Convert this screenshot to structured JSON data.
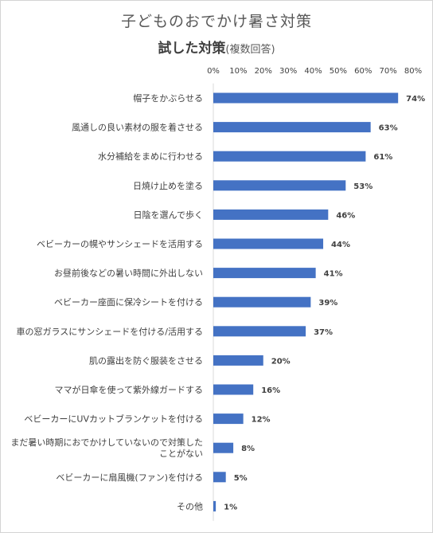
{
  "chart_data": {
    "type": "bar",
    "orientation": "horizontal",
    "title": "子どものおでかけ暑さ対策",
    "subtitle_main": "試した対策",
    "subtitle_note": "(複数回答)",
    "xlim": [
      0,
      80
    ],
    "ticks": [
      "0%",
      "10%",
      "20%",
      "30%",
      "40%",
      "50%",
      "60%",
      "70%",
      "80%"
    ],
    "tick_values": [
      0,
      10,
      20,
      30,
      40,
      50,
      60,
      70,
      80
    ],
    "grid": false,
    "bar_color": "#4472c4",
    "categories": [
      [
        "帽子をかぶらせる"
      ],
      [
        "風通しの良い素材の服を着させる"
      ],
      [
        "水分補給をまめに行わせる"
      ],
      [
        "日焼け止めを塗る"
      ],
      [
        "日陰を選んで歩く"
      ],
      [
        "ベビーカーの幌やサンシェードを活用する"
      ],
      [
        "お昼前後などの暑い時間に外出しない"
      ],
      [
        "ベビーカー座面に保冷シートを付ける"
      ],
      [
        "車の窓ガラスにサンシェードを付ける/活用する"
      ],
      [
        "肌の露出を防ぐ服装をさせる"
      ],
      [
        "ママが日傘を使って紫外線ガードする"
      ],
      [
        "ベビーカーにUVカットブランケットを付ける"
      ],
      [
        "まだ暑い時期におでかけしていないので対策した",
        "ことがない"
      ],
      [
        "ベビーカーに扇風機(ファン)を付ける"
      ],
      [
        "その他"
      ]
    ],
    "values": [
      74,
      63,
      61,
      53,
      46,
      44,
      41,
      39,
      37,
      20,
      16,
      12,
      8,
      5,
      1
    ],
    "value_labels": [
      "74%",
      "63%",
      "61%",
      "53%",
      "46%",
      "44%",
      "41%",
      "39%",
      "37%",
      "20%",
      "16%",
      "12%",
      "8%",
      "5%",
      "1%"
    ]
  }
}
